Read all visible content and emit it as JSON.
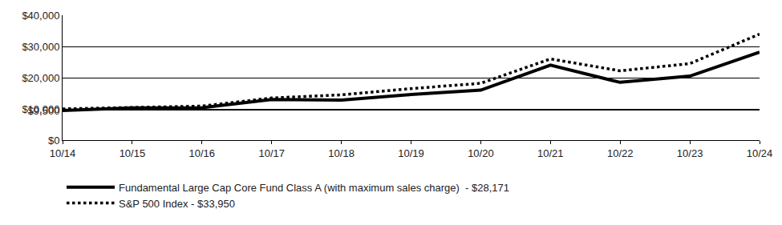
{
  "chart_data": {
    "type": "line",
    "categories": [
      "10/14",
      "10/15",
      "10/16",
      "10/17",
      "10/18",
      "10/19",
      "10/20",
      "10/21",
      "10/22",
      "10/23",
      "10/24"
    ],
    "series": [
      {
        "name": "Fundamental Large Cap Core Fund Class A (with maximum sales charge)  - $28,171",
        "color": "#000000",
        "line_style": "solid",
        "values": [
          9500,
          10300,
          10400,
          13000,
          12800,
          14600,
          16000,
          24000,
          18500,
          20500,
          28171
        ]
      },
      {
        "name": "S&P 500 Index - $33,950",
        "color": "#000000",
        "line_style": "dot",
        "values": [
          10000,
          10500,
          10900,
          13500,
          14500,
          16500,
          18200,
          26000,
          22200,
          24500,
          33950
        ]
      }
    ],
    "ylim": [
      0,
      40000
    ],
    "yticks": [
      {
        "value": 0,
        "label": "$0"
      },
      {
        "value": 9500,
        "label": "$9,500"
      },
      {
        "value": 10000,
        "label": "$10,000"
      },
      {
        "value": 20000,
        "label": "$20,000"
      },
      {
        "value": 30000,
        "label": "$30,000"
      },
      {
        "value": 40000,
        "label": "$40,000"
      }
    ],
    "grid": true,
    "legend": "bottom"
  }
}
